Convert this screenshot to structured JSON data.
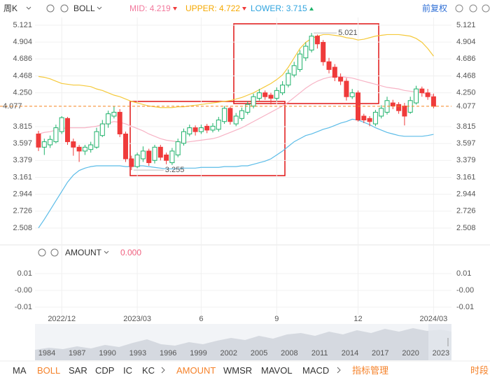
{
  "toolbar": {
    "period": "周K",
    "indicator": "BOLL",
    "adjust": "前复权"
  },
  "chart_data": [
    {
      "type": "candlestick",
      "categories": [
        null,
        null,
        null,
        null,
        "2022/12",
        null,
        null,
        null,
        null,
        null,
        null,
        null,
        null,
        null,
        null,
        null,
        null,
        "2023/03",
        null,
        null,
        null,
        null,
        null,
        null,
        null,
        null,
        null,
        null,
        "6",
        null,
        null,
        null,
        null,
        null,
        null,
        null,
        null,
        null,
        null,
        null,
        null,
        "9",
        null,
        null,
        null,
        null,
        null,
        null,
        null,
        null,
        null,
        null,
        null,
        null,
        null,
        "12",
        null,
        null,
        null,
        null,
        null,
        null,
        null,
        null,
        null,
        null,
        null,
        null,
        "2024/03"
      ],
      "open": [
        3.72,
        3.55,
        3.58,
        3.62,
        3.75,
        3.92,
        3.62,
        3.55,
        3.5,
        3.52,
        3.55,
        3.7,
        3.85,
        3.95,
        4,
        3.72,
        3.4,
        3.3,
        3.4,
        3.5,
        3.38,
        3.55,
        3.45,
        3.35,
        3.45,
        3.6,
        3.72,
        3.8,
        3.75,
        3.82,
        3.77,
        3.78,
        3.88,
        4.05,
        3.85,
        3.92,
        4,
        4.08,
        4.18,
        4.25,
        4.22,
        4.18,
        4.25,
        4.35,
        4.48,
        4.55,
        4.7,
        4.8,
        4.98,
        4.9,
        4.65,
        4.58,
        4.45,
        4.4,
        4.2,
        4.25,
        3.95,
        3.92,
        3.85,
        3.95,
        4,
        4.12,
        4.1,
        4.08,
        4,
        4.12,
        4.3,
        4.25,
        4.2
      ],
      "high": [
        3.76,
        3.66,
        3.7,
        3.84,
        3.95,
        3.94,
        3.66,
        3.58,
        3.58,
        3.62,
        3.8,
        3.9,
        4.02,
        4.08,
        4.04,
        3.75,
        3.44,
        3.48,
        3.56,
        3.53,
        3.58,
        3.58,
        3.48,
        3.54,
        3.66,
        3.79,
        3.84,
        3.83,
        3.84,
        3.85,
        3.86,
        3.94,
        4.08,
        4.07,
        3.99,
        4.06,
        4.14,
        4.24,
        4.3,
        4.28,
        4.25,
        4.32,
        4.4,
        4.55,
        4.65,
        4.8,
        4.9,
        5.021,
        5,
        4.93,
        4.7,
        4.62,
        4.5,
        4.44,
        4.3,
        4.28,
        3.98,
        3.95,
        4.03,
        4.09,
        4.2,
        4.16,
        4.13,
        4.12,
        4.2,
        4.34,
        4.33,
        4.3,
        4.24
      ],
      "low": [
        3.5,
        3.45,
        3.54,
        3.6,
        3.72,
        3.58,
        3.44,
        3.36,
        3.45,
        3.48,
        3.53,
        3.68,
        3.8,
        3.92,
        3.68,
        3.36,
        3.255,
        3.28,
        3.36,
        3.31,
        3.34,
        3.38,
        3.33,
        3.32,
        3.42,
        3.57,
        3.69,
        3.7,
        3.72,
        3.73,
        3.74,
        3.75,
        3.85,
        3.84,
        3.82,
        3.89,
        3.97,
        4.05,
        4.15,
        4.16,
        4.1,
        4.15,
        4.22,
        4.32,
        4.45,
        4.52,
        4.66,
        4.77,
        4.82,
        4.6,
        4.5,
        4.4,
        4.35,
        4.15,
        4.17,
        3.88,
        3.86,
        3.82,
        3.82,
        3.92,
        3.97,
        4.04,
        3.98,
        3.83,
        3.98,
        4.1,
        4.2,
        4.16,
        4.05
      ],
      "close": [
        3.55,
        3.62,
        3.65,
        3.8,
        3.93,
        3.62,
        3.55,
        3.5,
        3.55,
        3.58,
        3.75,
        3.85,
        3.98,
        4,
        3.72,
        3.4,
        3.3,
        3.45,
        3.5,
        3.35,
        3.55,
        3.42,
        3.38,
        3.5,
        3.62,
        3.75,
        3.8,
        3.75,
        3.8,
        3.77,
        3.82,
        3.9,
        4.05,
        3.88,
        3.95,
        4.02,
        4.1,
        4.2,
        4.25,
        4.2,
        4.18,
        4.28,
        4.35,
        4.5,
        4.6,
        4.75,
        4.85,
        4.98,
        4.88,
        4.65,
        4.55,
        4.45,
        4.4,
        4.2,
        4.25,
        3.9,
        3.9,
        3.88,
        4,
        4.05,
        4.15,
        4.08,
        4.02,
        3.95,
        4.15,
        4.3,
        4.25,
        4.2,
        4.077
      ],
      "up_color": "#1fb26b",
      "down_color": "#ef3b3b",
      "hollow_up": true,
      "last_price_color": "#f5821f",
      "series": [
        {
          "name": "MID:",
          "color": "#f2799d",
          "line_color": "#f7b3c5",
          "values": [
            3.72,
            3.74,
            3.75,
            3.77,
            3.79,
            3.8,
            3.8,
            3.8,
            3.8,
            3.81,
            3.82,
            3.84,
            3.86,
            3.88,
            3.87,
            3.85,
            3.82,
            3.79,
            3.76,
            3.72,
            3.69,
            3.66,
            3.64,
            3.63,
            3.62,
            3.61,
            3.62,
            3.63,
            3.64,
            3.65,
            3.66,
            3.68,
            3.71,
            3.74,
            3.77,
            3.8,
            3.84,
            3.88,
            3.92,
            3.96,
            4,
            4.04,
            4.08,
            4.13,
            4.19,
            4.25,
            4.31,
            4.36,
            4.4,
            4.43,
            4.45,
            4.46,
            4.46,
            4.45,
            4.44,
            4.42,
            4.4,
            4.38,
            4.36,
            4.34,
            4.32,
            4.31,
            4.3,
            4.28,
            4.27,
            4.26,
            4.25,
            4.23,
            4.219
          ]
        },
        {
          "name": "UPPER:",
          "color": "#f5a800",
          "line_color": "#f5c93a",
          "values": [
            4.46,
            4.45,
            4.43,
            4.4,
            4.37,
            4.36,
            4.35,
            4.35,
            4.34,
            4.33,
            4.3,
            4.28,
            4.25,
            4.22,
            4.2,
            4.17,
            4.14,
            4.12,
            4.1,
            4.08,
            4.07,
            4.06,
            4.06,
            4.06,
            4.07,
            4.07,
            4.08,
            4.09,
            4.1,
            4.11,
            4.12,
            4.13,
            4.14,
            4.15,
            4.17,
            4.19,
            4.22,
            4.25,
            4.29,
            4.33,
            4.37,
            4.42,
            4.48,
            4.58,
            4.7,
            4.82,
            4.9,
            4.95,
            4.98,
            5,
            5,
            4.99,
            4.98,
            4.96,
            4.95,
            4.93,
            4.94,
            4.96,
            4.98,
            4.99,
            5,
            5,
            5,
            4.99,
            4.98,
            4.95,
            4.9,
            4.82,
            4.722
          ]
        },
        {
          "name": "LOWER:",
          "color": "#2ea3de",
          "line_color": "#5bbce8",
          "values": [
            2.51,
            2.62,
            2.74,
            2.86,
            2.98,
            3.1,
            3.19,
            3.25,
            3.28,
            3.3,
            3.31,
            3.31,
            3.31,
            3.31,
            3.31,
            3.3,
            3.3,
            3.31,
            3.31,
            3.3,
            3.29,
            3.28,
            3.27,
            3.27,
            3.27,
            3.28,
            3.28,
            3.28,
            3.29,
            3.29,
            3.29,
            3.29,
            3.3,
            3.3,
            3.3,
            3.31,
            3.31,
            3.33,
            3.35,
            3.37,
            3.4,
            3.45,
            3.5,
            3.56,
            3.62,
            3.66,
            3.7,
            3.72,
            3.75,
            3.78,
            3.8,
            3.83,
            3.86,
            3.88,
            3.91,
            3.9,
            3.87,
            3.84,
            3.8,
            3.77,
            3.74,
            3.72,
            3.7,
            3.69,
            3.69,
            3.69,
            3.69,
            3.7,
            3.715
          ]
        }
      ],
      "ylim": [
        2.337,
        5.22
      ],
      "yticks": [
        5.121,
        4.904,
        4.686,
        4.468,
        {
          "value": 4.25,
          "label": "4.250"
        },
        3.815,
        3.597,
        3.379,
        3.161,
        2.944,
        2.726,
        2.508
      ],
      "grid": true
    },
    {
      "type": "bar",
      "title": "AMOUNT",
      "readout": "0.000",
      "readout_color": "#f0607f",
      "ylim": [
        -0.0146,
        0.0188
      ],
      "yticks": [
        0.01,
        {
          "value": 0,
          "label": "-0.00"
        },
        -0.01
      ],
      "grid": true
    }
  ],
  "navigator": {
    "years": [
      "1984",
      "1987",
      "1990",
      "1993",
      "1996",
      "1999",
      "2002",
      "2005",
      "2008",
      "2011",
      "2014",
      "2017",
      "2020",
      "2023"
    ]
  },
  "tabs": {
    "indicators": [
      {
        "label": "MA"
      },
      {
        "label": "BOLL",
        "active": true
      },
      {
        "label": "SAR"
      },
      {
        "label": "CDP"
      },
      {
        "label": "IC"
      },
      {
        "label": "KC"
      }
    ],
    "subcharts": [
      {
        "label": "AMOUNT",
        "active": true
      },
      {
        "label": "WMSR"
      },
      {
        "label": "MAVOL"
      },
      {
        "label": "MACD"
      }
    ],
    "manage": "指标管理",
    "period": "时段"
  }
}
